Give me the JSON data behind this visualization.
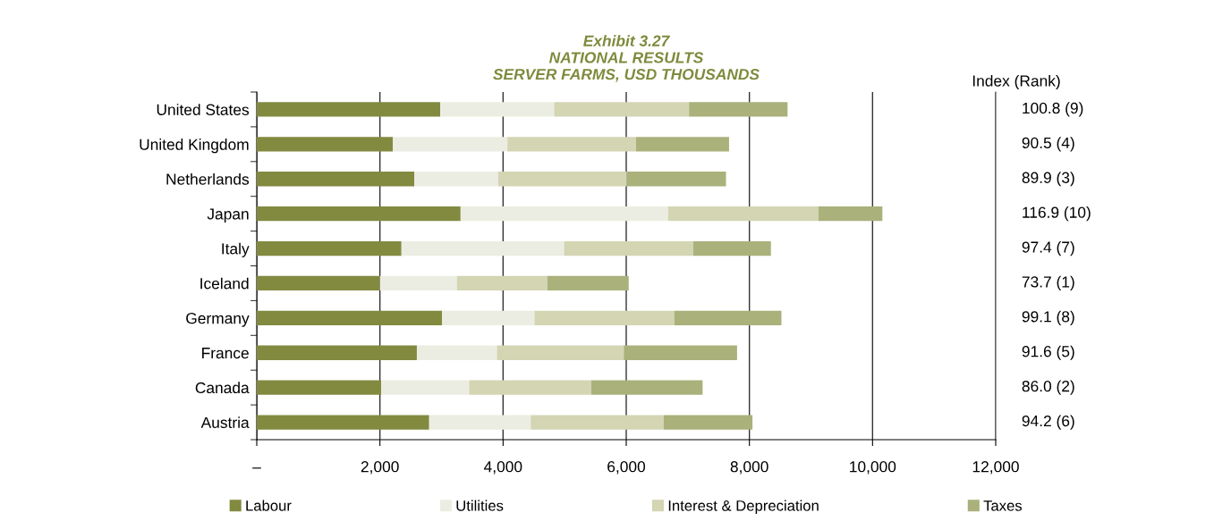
{
  "chart_data": {
    "type": "bar",
    "orientation": "horizontal",
    "stacked": true,
    "title": "Exhibit 3.27\nNATIONAL RESULTS\nSERVER FARMS, USD THOUSANDS",
    "categories": [
      "United States",
      "United Kingdom",
      "Netherlands",
      "Japan",
      "Italy",
      "Iceland",
      "Germany",
      "France",
      "Canada",
      "Austria"
    ],
    "series": [
      {
        "name": "Labour",
        "color": "#828a40",
        "values": [
          2980,
          2210,
          2560,
          3310,
          2350,
          2000,
          3010,
          2600,
          2020,
          2800
        ]
      },
      {
        "name": "Utilities",
        "color": "#ecede2",
        "values": [
          1850,
          1860,
          1360,
          3370,
          2640,
          1250,
          1500,
          1300,
          1430,
          1650
        ]
      },
      {
        "name": "Interest & Depreciation",
        "color": "#d3d5b3",
        "values": [
          2190,
          2090,
          2090,
          2440,
          2100,
          1470,
          2270,
          2060,
          1980,
          2160
        ]
      },
      {
        "name": "Taxes",
        "color": "#aab17b",
        "values": [
          1600,
          1510,
          1610,
          1040,
          1260,
          1320,
          1740,
          1840,
          1810,
          1440
        ]
      }
    ],
    "xlim": [
      0,
      12000
    ],
    "xticks": [
      {
        "value": 0,
        "label": "–"
      },
      {
        "value": 2000,
        "label": "2,000"
      },
      {
        "value": 4000,
        "label": "4,000"
      },
      {
        "value": 6000,
        "label": "6,000"
      },
      {
        "value": 8000,
        "label": "8,000"
      },
      {
        "value": 10000,
        "label": "10,000"
      },
      {
        "value": 12000,
        "label": "12,000"
      }
    ],
    "grid": "x",
    "legend": "bottom",
    "annotations": [
      "Index (Rank)",
      "100.8 (9)",
      "90.5 (4)",
      "89.9 (3)",
      "116.9 (10)",
      "97.4 (7)",
      "73.7 (1)",
      "99.1 (8)",
      "91.6 (5)",
      "86.0 (2)",
      "94.2 (6)"
    ]
  }
}
